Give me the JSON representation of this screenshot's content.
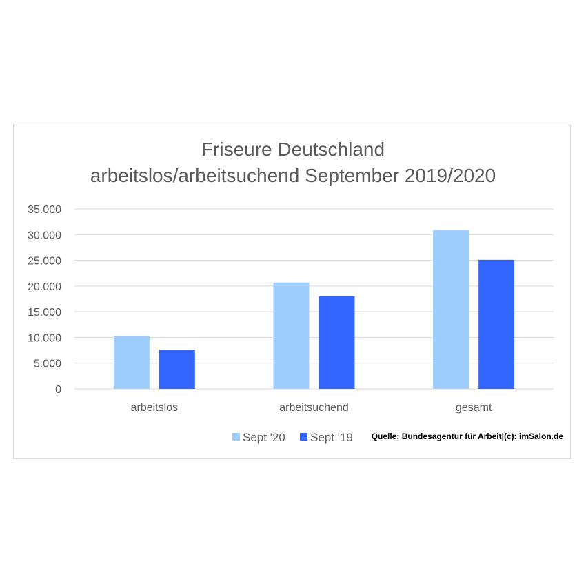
{
  "chart_data": {
    "type": "bar",
    "title_lines": [
      "Friseure Deutschland",
      "arbeitslos/arbeitsuchend September 2019/2020"
    ],
    "categories": [
      "arbeitslos",
      "arbeitsuchend",
      "gesamt"
    ],
    "series": [
      {
        "name": "Sept '20",
        "values": [
          10200,
          20700,
          30900
        ],
        "color": "#9dcefd"
      },
      {
        "name": "Sept '19",
        "values": [
          7600,
          18000,
          25100
        ],
        "color": "#3366ff"
      }
    ],
    "ylim": [
      0,
      35000
    ],
    "yticks": [
      0,
      5000,
      10000,
      15000,
      20000,
      25000,
      30000,
      35000
    ],
    "ytick_labels": [
      "0",
      "5.000",
      "10.000",
      "15.000",
      "20.000",
      "25.000",
      "30.000",
      "35.000"
    ],
    "grid": true,
    "legend_position": "bottom",
    "source": "Quelle: Bundesagentur für Arbeit|(c): imSalon.de"
  }
}
